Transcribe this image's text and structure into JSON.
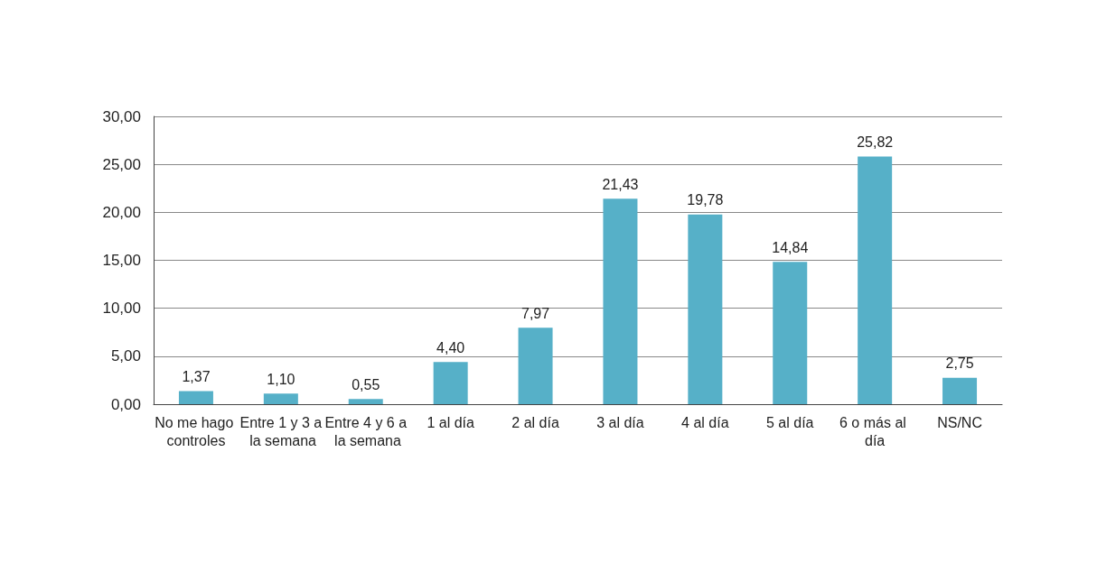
{
  "chart_data": {
    "type": "bar",
    "categories": [
      "No me hago controles",
      "Entre 1 y 3 a la semana",
      "Entre 4 y 6 a la semana",
      "1 al día",
      "2 al día",
      "3 al día",
      "4 al día",
      "5 al día",
      "6 o más al día",
      "NS/NC"
    ],
    "values": [
      1.37,
      1.1,
      0.55,
      4.4,
      7.97,
      21.43,
      19.78,
      14.84,
      25.82,
      2.75
    ],
    "value_labels": [
      "1,37",
      "1,10",
      "0,55",
      "4,40",
      "7,97",
      "21,43",
      "19,78",
      "14,84",
      "25,82",
      "2,75"
    ],
    "color": "#56b0c8",
    "ylim": [
      0,
      30
    ],
    "yticks": [
      {
        "value": 0,
        "label": "0,00"
      },
      {
        "value": 5,
        "label": "5,00"
      },
      {
        "value": 10,
        "label": "10,00"
      },
      {
        "value": 15,
        "label": "15,00"
      },
      {
        "value": 20,
        "label": "20,00"
      },
      {
        "value": 25,
        "label": "25,00"
      },
      {
        "value": 30,
        "label": "30,00"
      }
    ],
    "grid": "y"
  }
}
